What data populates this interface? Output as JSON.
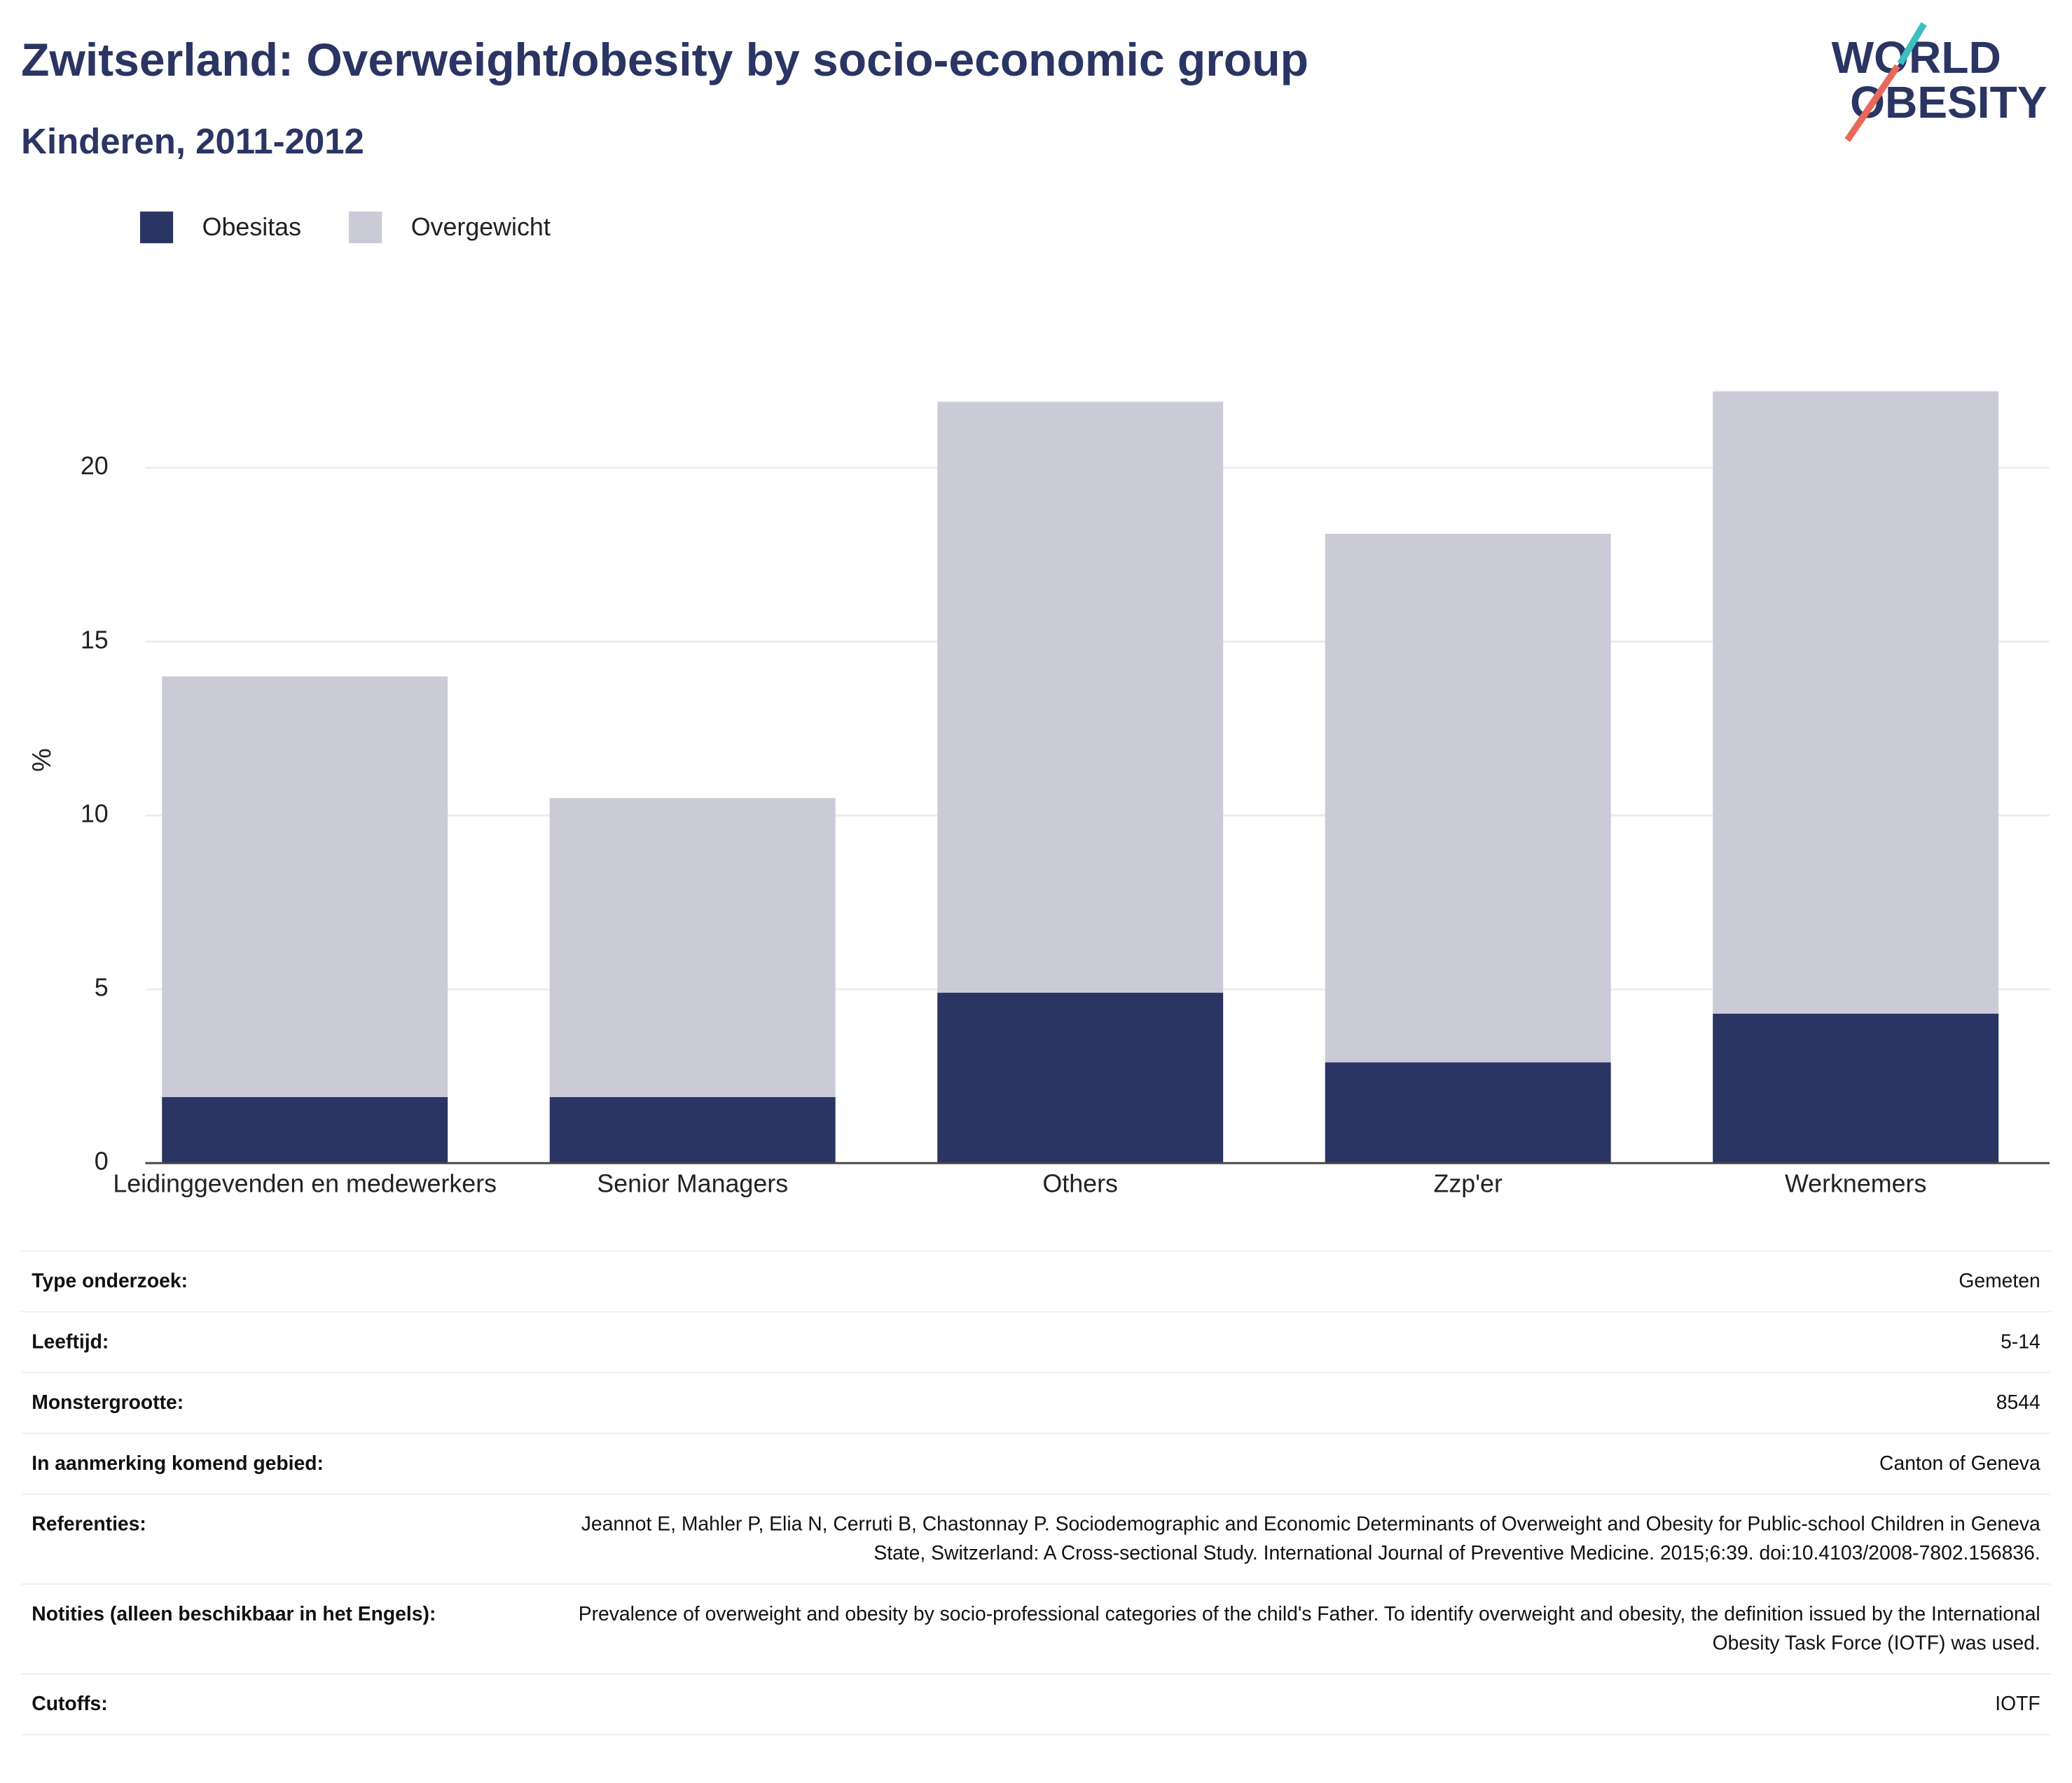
{
  "chart_data": {
    "type": "bar",
    "stacked": true,
    "title": "Zwitserland: Overweight/obesity by socio-economic group",
    "subtitle": "Kinderen, 2011-2012",
    "y_label": "%",
    "categories": [
      "Leidinggevenden en medewerkers",
      "Senior Managers",
      "Others",
      "Zzp'er",
      "Werknemers"
    ],
    "series": [
      {
        "name": "Obesitas",
        "color": "#2a3563",
        "values": [
          1.9,
          1.9,
          4.9,
          2.9,
          4.3
        ]
      },
      {
        "name": "Overgewicht",
        "color": "#cacbd7",
        "values": [
          12.1,
          8.6,
          17.0,
          15.2,
          17.9
        ]
      }
    ],
    "ylim": [
      0,
      23
    ],
    "yticks": [
      0,
      5,
      10,
      15,
      20
    ],
    "grid": true,
    "legend": "top-left"
  },
  "logo": {
    "line1": "WORLD",
    "line2": "OBESITY"
  },
  "table": {
    "rows": [
      {
        "label": "Type onderzoek:",
        "value": "Gemeten"
      },
      {
        "label": "Leeftijd:",
        "value": "5-14"
      },
      {
        "label": "Monstergrootte:",
        "value": "8544"
      },
      {
        "label": "In aanmerking komend gebied:",
        "value": "Canton of Geneva"
      },
      {
        "label": "Referenties:",
        "value": "Jeannot E, Mahler P, Elia N, Cerruti B, Chastonnay P. Sociodemographic and Economic Determinants of Overweight and Obesity for Public-school Children in Geneva State, Switzerland: A Cross-sectional Study. International Journal of Preventive Medicine. 2015;6:39. doi:10.4103/2008-7802.156836."
      },
      {
        "label": "Notities (alleen beschikbaar in het Engels):",
        "value": "Prevalence of overweight and obesity by socio-professional categories of the child's Father. To identify overweight and obesity, the definition issued by the International Obesity Task Force (IOTF) was used."
      },
      {
        "label": "Cutoffs:",
        "value": "IOTF"
      }
    ]
  }
}
